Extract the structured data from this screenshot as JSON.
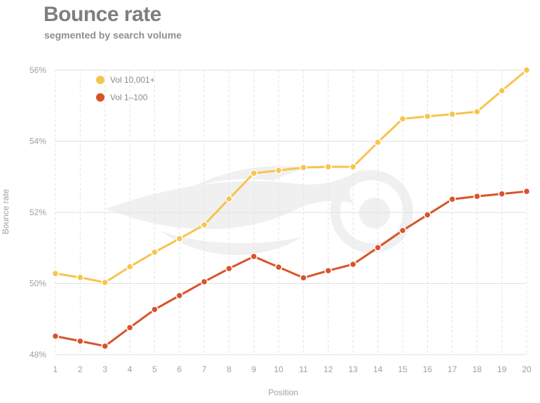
{
  "title": "Bounce rate",
  "subtitle": "segmented by search volume",
  "chart_data": {
    "type": "line",
    "title": "Bounce rate",
    "subtitle": "segmented by search volume",
    "xlabel": "Position",
    "ylabel": "Bounce rate",
    "x": [
      1,
      2,
      3,
      4,
      5,
      6,
      7,
      8,
      9,
      10,
      11,
      12,
      13,
      14,
      15,
      16,
      17,
      18,
      19,
      20
    ],
    "ylim": [
      48,
      56
    ],
    "yticks": [
      48,
      50,
      52,
      54,
      56
    ],
    "ytick_labels": [
      "48%",
      "50%",
      "52%",
      "54%",
      "56%"
    ],
    "grid": "on",
    "legend_position": "top-left",
    "series": [
      {
        "name": "Vol 10,001+",
        "color": "#f7c44e",
        "values": [
          50.28,
          50.17,
          50.03,
          50.47,
          50.88,
          51.26,
          51.65,
          52.38,
          53.1,
          53.18,
          53.26,
          53.28,
          53.28,
          53.97,
          54.63,
          54.7,
          54.76,
          54.83,
          55.42,
          56.0
        ]
      },
      {
        "name": "Vol 1–100",
        "color": "#d9532a",
        "values": [
          48.52,
          48.38,
          48.24,
          48.76,
          49.27,
          49.66,
          50.05,
          50.42,
          50.76,
          50.46,
          50.16,
          50.36,
          50.54,
          51.01,
          51.49,
          51.93,
          52.37,
          52.45,
          52.52,
          52.59
        ]
      }
    ]
  }
}
